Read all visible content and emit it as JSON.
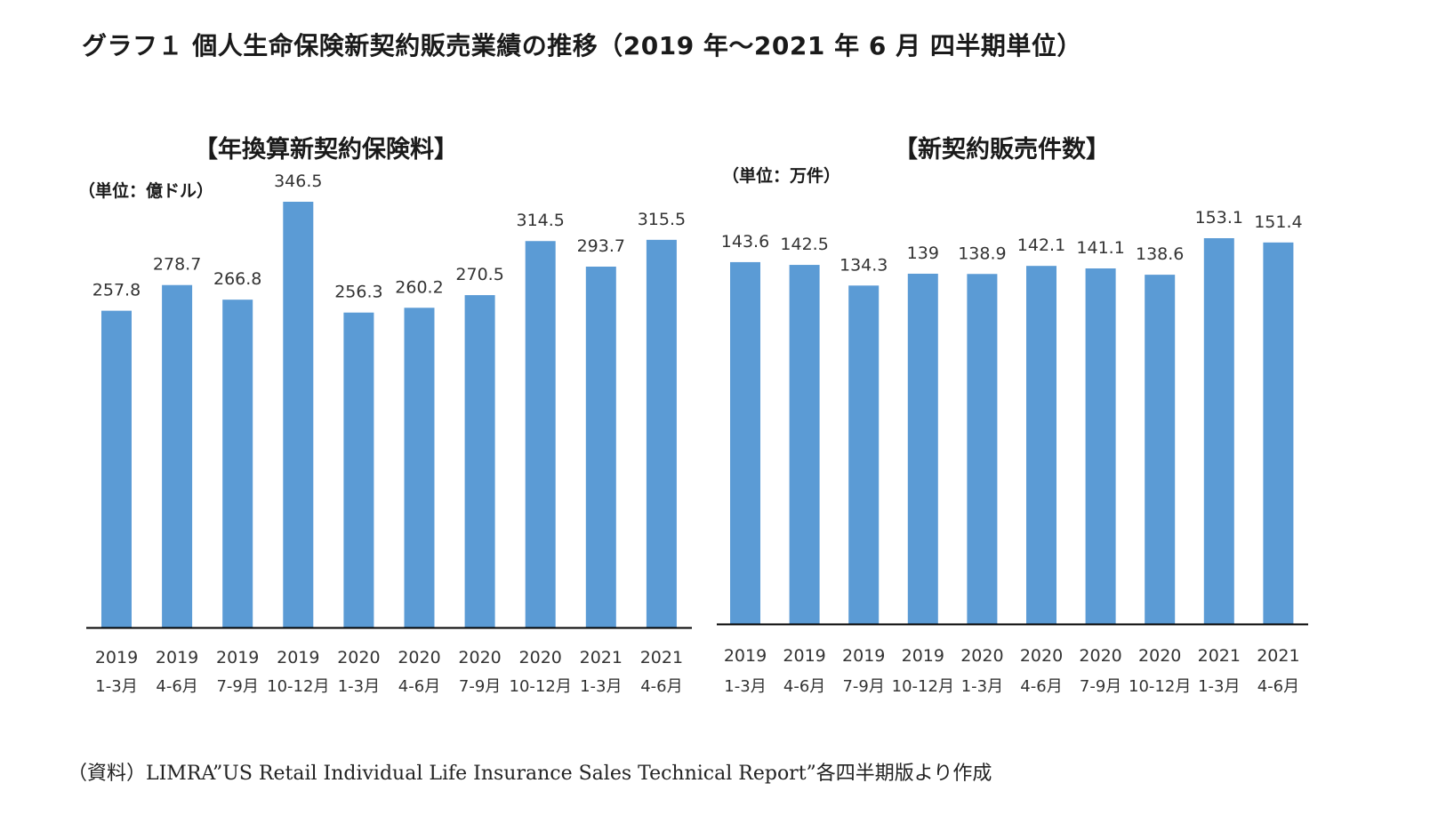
{
  "title": "グラフ１ 個人生命保険新契約販売業績の推移（2019 年～2021 年 6 月 四半期単位）",
  "source": "（資料）LIMRA”US Retail Individual Life Insurance Sales Technical Report”各四半期版より作成",
  "colors": {
    "bar": "#5b9bd5",
    "axis": "#000000",
    "text": "#333333"
  },
  "chart_data": [
    {
      "type": "bar",
      "title": "【年換算新契約保険料】",
      "unit": "（単位：億ドル）",
      "categories": [
        [
          "2019",
          "1-3月"
        ],
        [
          "2019",
          "4-6月"
        ],
        [
          "2019",
          "7-9月"
        ],
        [
          "2019",
          "10-12月"
        ],
        [
          "2020",
          "1-3月"
        ],
        [
          "2020",
          "4-6月"
        ],
        [
          "2020",
          "7-9月"
        ],
        [
          "2020",
          "10-12月"
        ],
        [
          "2021",
          "1-3月"
        ],
        [
          "2021",
          "4-6月"
        ]
      ],
      "values": [
        257.8,
        278.7,
        266.8,
        346.5,
        256.3,
        260.2,
        270.5,
        314.5,
        293.7,
        315.5
      ],
      "value_labels": [
        "257.8",
        "278.7",
        "266.8",
        "346.5",
        "256.3",
        "260.2",
        "270.5",
        "314.5",
        "293.7",
        "315.5"
      ],
      "ylim": [
        0,
        400
      ],
      "grid": false,
      "legend": "none"
    },
    {
      "type": "bar",
      "title": "【新契約販売件数】",
      "unit": "（単位：万件）",
      "categories": [
        [
          "2019",
          "1-3月"
        ],
        [
          "2019",
          "4-6月"
        ],
        [
          "2019",
          "7-9月"
        ],
        [
          "2019",
          "10-12月"
        ],
        [
          "2020",
          "1-3月"
        ],
        [
          "2020",
          "4-6月"
        ],
        [
          "2020",
          "7-9月"
        ],
        [
          "2020",
          "10-12月"
        ],
        [
          "2021",
          "1-3月"
        ],
        [
          "2021",
          "4-6月"
        ]
      ],
      "values": [
        143.6,
        142.5,
        134.3,
        139,
        138.9,
        142.1,
        141.1,
        138.6,
        153.1,
        151.4
      ],
      "value_labels": [
        "143.6",
        "142.5",
        "134.3",
        "139",
        "138.9",
        "142.1",
        "141.1",
        "138.6",
        "153.1",
        "151.4"
      ],
      "ylim": [
        0,
        160
      ],
      "grid": false,
      "legend": "none"
    }
  ]
}
